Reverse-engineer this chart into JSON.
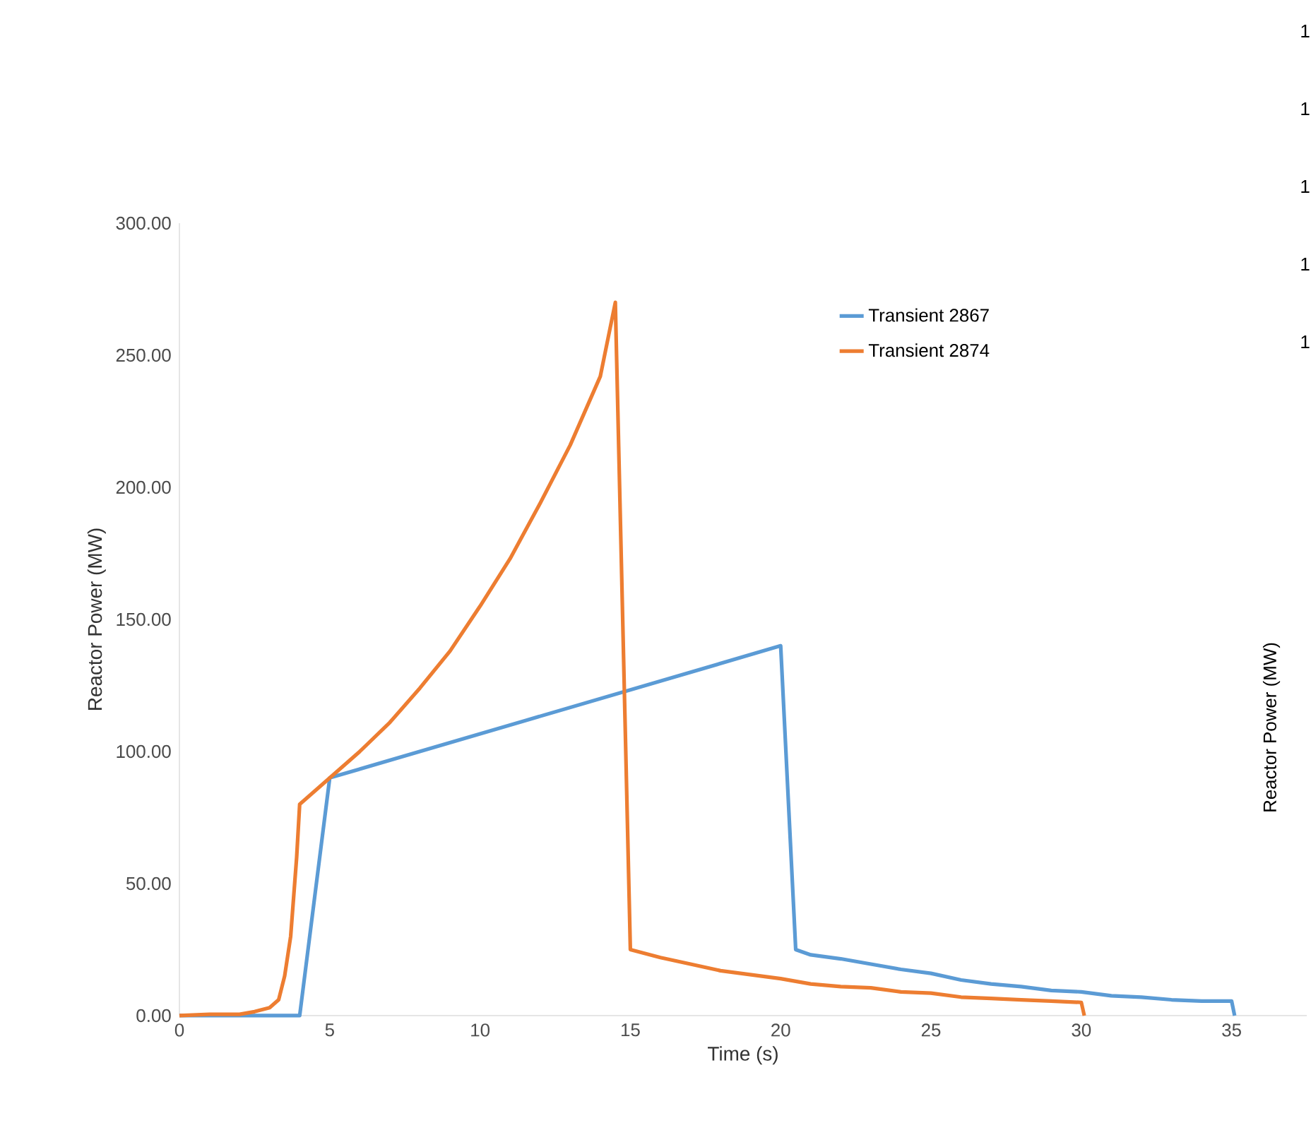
{
  "chart_data": [
    {
      "type": "line",
      "xlabel": "Time (s)",
      "ylabel": "Reactor Power (MW)",
      "xlim": [
        0,
        37.5
      ],
      "ylim": [
        0,
        300
      ],
      "xticks": [
        0,
        5,
        10,
        15,
        20,
        25,
        30,
        35
      ],
      "yticks": [
        {
          "value": 0,
          "label": "0.00"
        },
        {
          "value": 50,
          "label": "50.00"
        },
        {
          "value": 100,
          "label": "100.00"
        },
        {
          "value": 150,
          "label": "150.00"
        },
        {
          "value": 200,
          "label": "200.00"
        },
        {
          "value": 250,
          "label": "250.00"
        },
        {
          "value": 300,
          "label": "300.00"
        }
      ],
      "legend": "top right",
      "grid": false,
      "marker": "none",
      "line_style": "solid",
      "series": [
        {
          "name": "Transient 2867",
          "color": "#5b9bd5",
          "x": [
            0,
            4,
            5,
            20,
            20.5,
            21,
            22,
            23,
            24,
            25,
            26,
            27,
            28,
            29,
            30,
            31,
            32,
            33,
            34,
            35,
            35.1
          ],
          "values": [
            0,
            0,
            90,
            140,
            25,
            23,
            21.5,
            19.5,
            17.5,
            16,
            13.5,
            12,
            11,
            9.5,
            9,
            7.5,
            7,
            6,
            5.5,
            5.5,
            0
          ]
        },
        {
          "name": "Transient 2874",
          "color": "#ed7d31",
          "x": [
            0,
            1,
            2,
            2.5,
            3,
            3.3,
            3.5,
            3.7,
            3.9,
            4,
            5,
            6,
            7,
            8,
            9,
            10,
            11,
            12,
            13,
            14,
            14.5,
            15,
            16,
            17,
            18,
            19,
            20,
            21,
            22,
            23,
            24,
            25,
            26,
            27,
            28,
            29,
            30,
            30.1
          ],
          "values": [
            0,
            0.5,
            0.5,
            1.5,
            3,
            6,
            15,
            30,
            60,
            80,
            90,
            100,
            111,
            124,
            138,
            155,
            173,
            194,
            216,
            242,
            270,
            25,
            22,
            19.5,
            17,
            15.5,
            14,
            12,
            11,
            10.5,
            9,
            8.5,
            7,
            6.5,
            6,
            5.5,
            5,
            0
          ]
        }
      ]
    },
    {
      "type": "other",
      "ylabel": "Reactor Power (MW)",
      "annotations": [
        "1",
        "1",
        "1",
        "1",
        "1"
      ]
    }
  ]
}
